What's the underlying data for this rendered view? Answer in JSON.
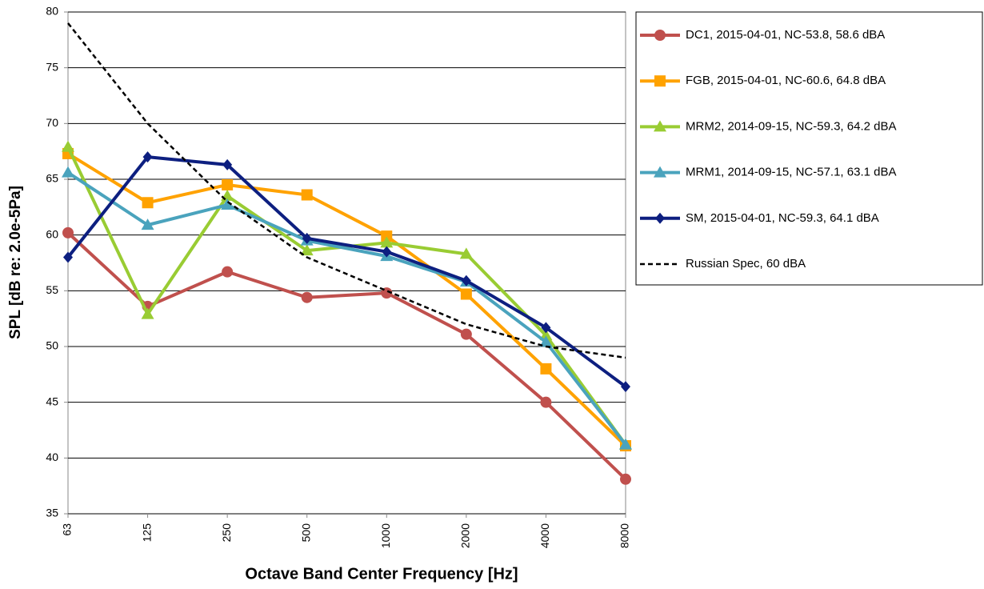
{
  "chart_data": {
    "type": "line",
    "x_label": "Octave Band Center Frequency [Hz]",
    "y_label": "SPL [dB re: 2.0e-5Pa]",
    "categories": [
      "63",
      "125",
      "250",
      "500",
      "1000",
      "2000",
      "4000",
      "8000"
    ],
    "ylim": [
      35,
      80
    ],
    "yticks": [
      35,
      40,
      45,
      50,
      55,
      60,
      65,
      70,
      75,
      80
    ],
    "grid": true,
    "legend": "right",
    "series": [
      {
        "name": "DC1, 2015-04-01, NC-53.8, 58.6 dBA",
        "color": "#c0504d",
        "marker": "circle",
        "values": [
          60.2,
          53.6,
          56.7,
          54.4,
          54.8,
          51.1,
          45.0,
          38.1
        ]
      },
      {
        "name": "FGB, 2015-04-01, NC-60.6, 64.8 dBA",
        "color": "#ffa200",
        "marker": "square",
        "values": [
          67.3,
          62.9,
          64.5,
          63.6,
          59.9,
          54.7,
          48.0,
          41.1
        ]
      },
      {
        "name": "MRM2, 2014-09-15, NC-59.3, 64.2 dBA",
        "color": "#99cc33",
        "marker": "triangle",
        "values": [
          67.9,
          52.9,
          63.5,
          58.6,
          59.3,
          58.3,
          51.0,
          41.2
        ]
      },
      {
        "name": "MRM1, 2014-09-15, NC-57.1, 63.1 dBA",
        "color": "#4aa3bd",
        "marker": "triangle",
        "values": [
          65.6,
          60.9,
          62.7,
          59.5,
          58.1,
          55.8,
          50.4,
          41.2
        ]
      },
      {
        "name": "SM, 2015-04-01, NC-59.3, 64.1 dBA",
        "color": "#0d1f80",
        "marker": "diamond",
        "values": [
          58.0,
          67.0,
          66.3,
          59.7,
          58.5,
          55.9,
          51.7,
          46.4
        ]
      },
      {
        "name": "Russian Spec, 60 dBA",
        "color": "#000000",
        "marker": "none",
        "dashed": true,
        "values": [
          79,
          70,
          63,
          58,
          55,
          52,
          50,
          49
        ]
      }
    ]
  }
}
